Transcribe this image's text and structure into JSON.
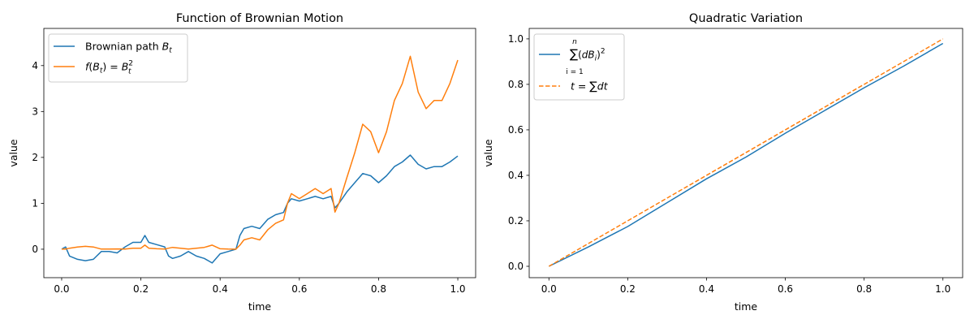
{
  "chart_data": [
    {
      "type": "line",
      "title": "Function of Brownian Motion",
      "xlabel": "time",
      "ylabel": "value",
      "xlim": [
        -0.045,
        1.045
      ],
      "ylim": [
        -0.62,
        4.81
      ],
      "xticks": [
        0.0,
        0.2,
        0.4,
        0.6,
        0.8,
        1.0
      ],
      "xtick_labels": [
        "0.0",
        "0.2",
        "0.4",
        "0.6",
        "0.8",
        "1.0"
      ],
      "yticks": [
        0,
        1,
        2,
        3,
        4
      ],
      "ytick_labels": [
        "0",
        "1",
        "2",
        "3",
        "4"
      ],
      "grid": false,
      "legend_placement": "top-left",
      "series": [
        {
          "name": "Brownian path B_t",
          "legend_main": "Brownian path ",
          "legend_var": "B",
          "legend_sub": "t",
          "color": "#1f77b4",
          "style": "solid",
          "x": [
            0,
            0.01,
            0.02,
            0.04,
            0.06,
            0.08,
            0.1,
            0.12,
            0.14,
            0.16,
            0.18,
            0.2,
            0.21,
            0.22,
            0.24,
            0.26,
            0.27,
            0.28,
            0.3,
            0.32,
            0.34,
            0.36,
            0.38,
            0.4,
            0.42,
            0.44,
            0.45,
            0.46,
            0.48,
            0.5,
            0.52,
            0.54,
            0.56,
            0.57,
            0.58,
            0.6,
            0.62,
            0.64,
            0.66,
            0.68,
            0.69,
            0.7,
            0.72,
            0.74,
            0.76,
            0.78,
            0.8,
            0.82,
            0.84,
            0.86,
            0.88,
            0.9,
            0.92,
            0.94,
            0.96,
            0.98,
            1.0
          ],
          "y": [
            0,
            0.05,
            -0.15,
            -0.22,
            -0.25,
            -0.22,
            -0.05,
            -0.05,
            -0.08,
            0.05,
            0.15,
            0.15,
            0.3,
            0.15,
            0.1,
            0.05,
            -0.15,
            -0.2,
            -0.15,
            -0.05,
            -0.15,
            -0.2,
            -0.3,
            -0.1,
            -0.05,
            0.0,
            0.3,
            0.45,
            0.5,
            0.45,
            0.65,
            0.75,
            0.8,
            1.0,
            1.1,
            1.05,
            1.1,
            1.15,
            1.1,
            1.15,
            0.9,
            1.0,
            1.25,
            1.45,
            1.65,
            1.6,
            1.45,
            1.6,
            1.8,
            1.9,
            2.05,
            1.85,
            1.75,
            1.8,
            1.8,
            1.9,
            2.03
          ]
        },
        {
          "name": "f(B_t) = B_t^2",
          "color": "#ff7f0e",
          "style": "solid",
          "x": [
            0,
            0.01,
            0.02,
            0.04,
            0.06,
            0.08,
            0.1,
            0.12,
            0.14,
            0.16,
            0.18,
            0.2,
            0.21,
            0.22,
            0.24,
            0.26,
            0.27,
            0.28,
            0.3,
            0.32,
            0.34,
            0.36,
            0.38,
            0.4,
            0.42,
            0.44,
            0.45,
            0.46,
            0.48,
            0.5,
            0.52,
            0.54,
            0.56,
            0.57,
            0.58,
            0.6,
            0.62,
            0.64,
            0.66,
            0.68,
            0.69,
            0.7,
            0.72,
            0.74,
            0.76,
            0.78,
            0.8,
            0.82,
            0.84,
            0.86,
            0.88,
            0.9,
            0.92,
            0.94,
            0.96,
            0.98,
            1.0
          ],
          "y": [
            0,
            0.0025,
            0.0225,
            0.0484,
            0.0625,
            0.0484,
            0.0025,
            0.0025,
            0.0064,
            0.0025,
            0.0225,
            0.0225,
            0.09,
            0.0225,
            0.01,
            0.0025,
            0.0225,
            0.04,
            0.0225,
            0.0025,
            0.0225,
            0.04,
            0.09,
            0.01,
            0.0025,
            0.0,
            0.09,
            0.2025,
            0.25,
            0.2025,
            0.4225,
            0.5625,
            0.64,
            1.0,
            1.21,
            1.1025,
            1.21,
            1.3225,
            1.21,
            1.3225,
            0.81,
            1.0,
            1.5625,
            2.1025,
            2.7225,
            2.56,
            2.1025,
            2.56,
            3.24,
            3.61,
            4.2025,
            3.4225,
            3.0625,
            3.24,
            3.24,
            3.61,
            4.1209
          ]
        }
      ]
    },
    {
      "type": "line",
      "title": "Quadratic Variation",
      "xlabel": "time",
      "ylabel": "value",
      "xlim": [
        -0.05,
        1.05
      ],
      "ylim": [
        -0.05,
        1.046
      ],
      "xticks": [
        0.0,
        0.2,
        0.4,
        0.6,
        0.8,
        1.0
      ],
      "xtick_labels": [
        "0.0",
        "0.2",
        "0.4",
        "0.6",
        "0.8",
        "1.0"
      ],
      "yticks": [
        0.0,
        0.2,
        0.4,
        0.6,
        0.8,
        1.0
      ],
      "ytick_labels": [
        "0.0",
        "0.2",
        "0.4",
        "0.6",
        "0.8",
        "1.0"
      ],
      "grid": false,
      "legend_placement": "top-left",
      "series": [
        {
          "name": "sum_{i=1}^{n} (dB_i)^2",
          "color": "#1f77b4",
          "style": "solid",
          "x": [
            0,
            0.1,
            0.2,
            0.3,
            0.4,
            0.5,
            0.6,
            0.7,
            0.8,
            0.9,
            1.0
          ],
          "y": [
            0,
            0.085,
            0.175,
            0.28,
            0.385,
            0.48,
            0.585,
            0.685,
            0.785,
            0.88,
            0.98
          ]
        },
        {
          "name": "t = sum dt",
          "color": "#ff7f0e",
          "style": "dashed",
          "x": [
            0,
            1
          ],
          "y": [
            0,
            1
          ]
        }
      ]
    }
  ]
}
